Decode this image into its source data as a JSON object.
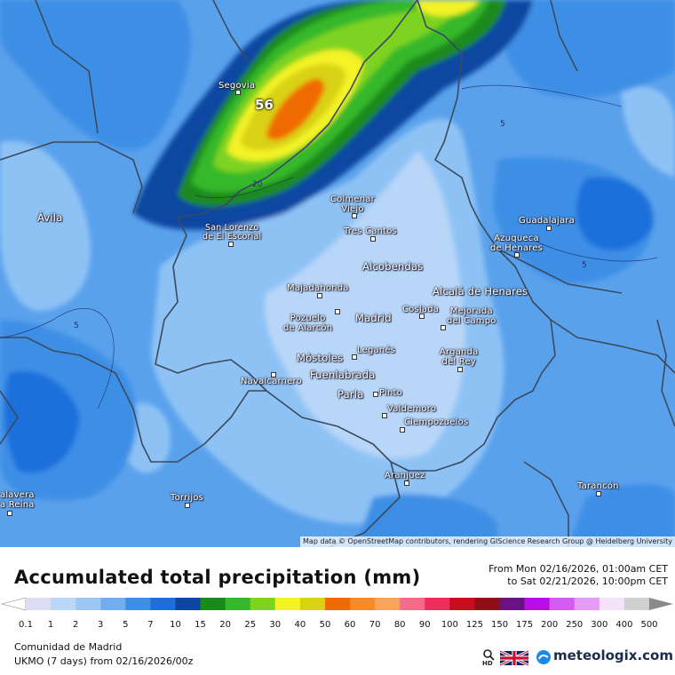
{
  "map": {
    "attribution": "Map data © OpenStreetMap contributors, rendering GIScience Research Group @ Heidelberg University",
    "max_value": "56",
    "contour_labels": [
      "20",
      "5",
      "5",
      "5"
    ],
    "cities": [
      {
        "key": "segovia",
        "label": "Segovia"
      },
      {
        "key": "avila",
        "label": "Ávila"
      },
      {
        "key": "colmenar",
        "label": "Colmenar\nViejo"
      },
      {
        "key": "sanlorenzo",
        "label": "San Lorenzo\nde El Escorial"
      },
      {
        "key": "trescantos",
        "label": "Tres Cantos"
      },
      {
        "key": "guadalajara",
        "label": "Guadalajara"
      },
      {
        "key": "azuqueca",
        "label": "Azuqueca\nde Henares"
      },
      {
        "key": "alcobendas",
        "label": "Alcobendas"
      },
      {
        "key": "majadahonda",
        "label": "Majadahonda"
      },
      {
        "key": "alcala",
        "label": "Alcalá de Henares"
      },
      {
        "key": "pozuelo",
        "label": "Pozuelo\nde Alarcón"
      },
      {
        "key": "madrid",
        "label": "Madrid"
      },
      {
        "key": "coslada",
        "label": "Coslada"
      },
      {
        "key": "mejorada",
        "label": "Mejorada\ndel Campo"
      },
      {
        "key": "leganes",
        "label": "Leganés"
      },
      {
        "key": "mostoles",
        "label": "Móstoles"
      },
      {
        "key": "arganda",
        "label": "Arganda\ndel Rey"
      },
      {
        "key": "fuenlabrada",
        "label": "Fuenlabrada"
      },
      {
        "key": "navalcarnero",
        "label": "Navalcarnero"
      },
      {
        "key": "parla",
        "label": "Parla"
      },
      {
        "key": "pinto",
        "label": "Pinto"
      },
      {
        "key": "valdemoro",
        "label": "Valdemoro"
      },
      {
        "key": "ciempozuelos",
        "label": "Ciempozuelos"
      },
      {
        "key": "aranjuez",
        "label": "Aranjuez"
      },
      {
        "key": "talavera",
        "label": "alavera\na Reina"
      },
      {
        "key": "torrijos",
        "label": "Torrijos"
      },
      {
        "key": "tarancon",
        "label": "Tarancón"
      }
    ]
  },
  "header": {
    "title": "Accumulated total precipitation (mm)",
    "range_from": "From Mon 02/16/2026, 01:00am CET",
    "range_to": "to Sat 02/21/2026, 10:00pm CET"
  },
  "legend": {
    "ticks": [
      "0.1",
      "1",
      "2",
      "3",
      "5",
      "7",
      "10",
      "15",
      "20",
      "25",
      "30",
      "40",
      "50",
      "60",
      "70",
      "80",
      "90",
      "100",
      "125",
      "150",
      "175",
      "200",
      "250",
      "300",
      "400",
      "500"
    ],
    "colors": [
      "#dcdcf5",
      "#bcd8f8",
      "#9cc8f5",
      "#70aef0",
      "#3d8fe6",
      "#1f6fdb",
      "#0d47a1",
      "#1a8a1a",
      "#35b82b",
      "#7ed321",
      "#f3f325",
      "#d9d215",
      "#ef6b00",
      "#f98a2a",
      "#fca45c",
      "#f56a88",
      "#ef2d5b",
      "#c80e1e",
      "#8e0f16",
      "#6a1183",
      "#b80ee8",
      "#d55cf3",
      "#e59af7",
      "#f3e3fb",
      "#d0d0d0"
    ]
  },
  "footer": {
    "region": "Comunidad de Madrid",
    "model": "UKMO (7 days)  from  02/16/2026/00z",
    "hd": "HD",
    "brand": "meteologix.com"
  }
}
